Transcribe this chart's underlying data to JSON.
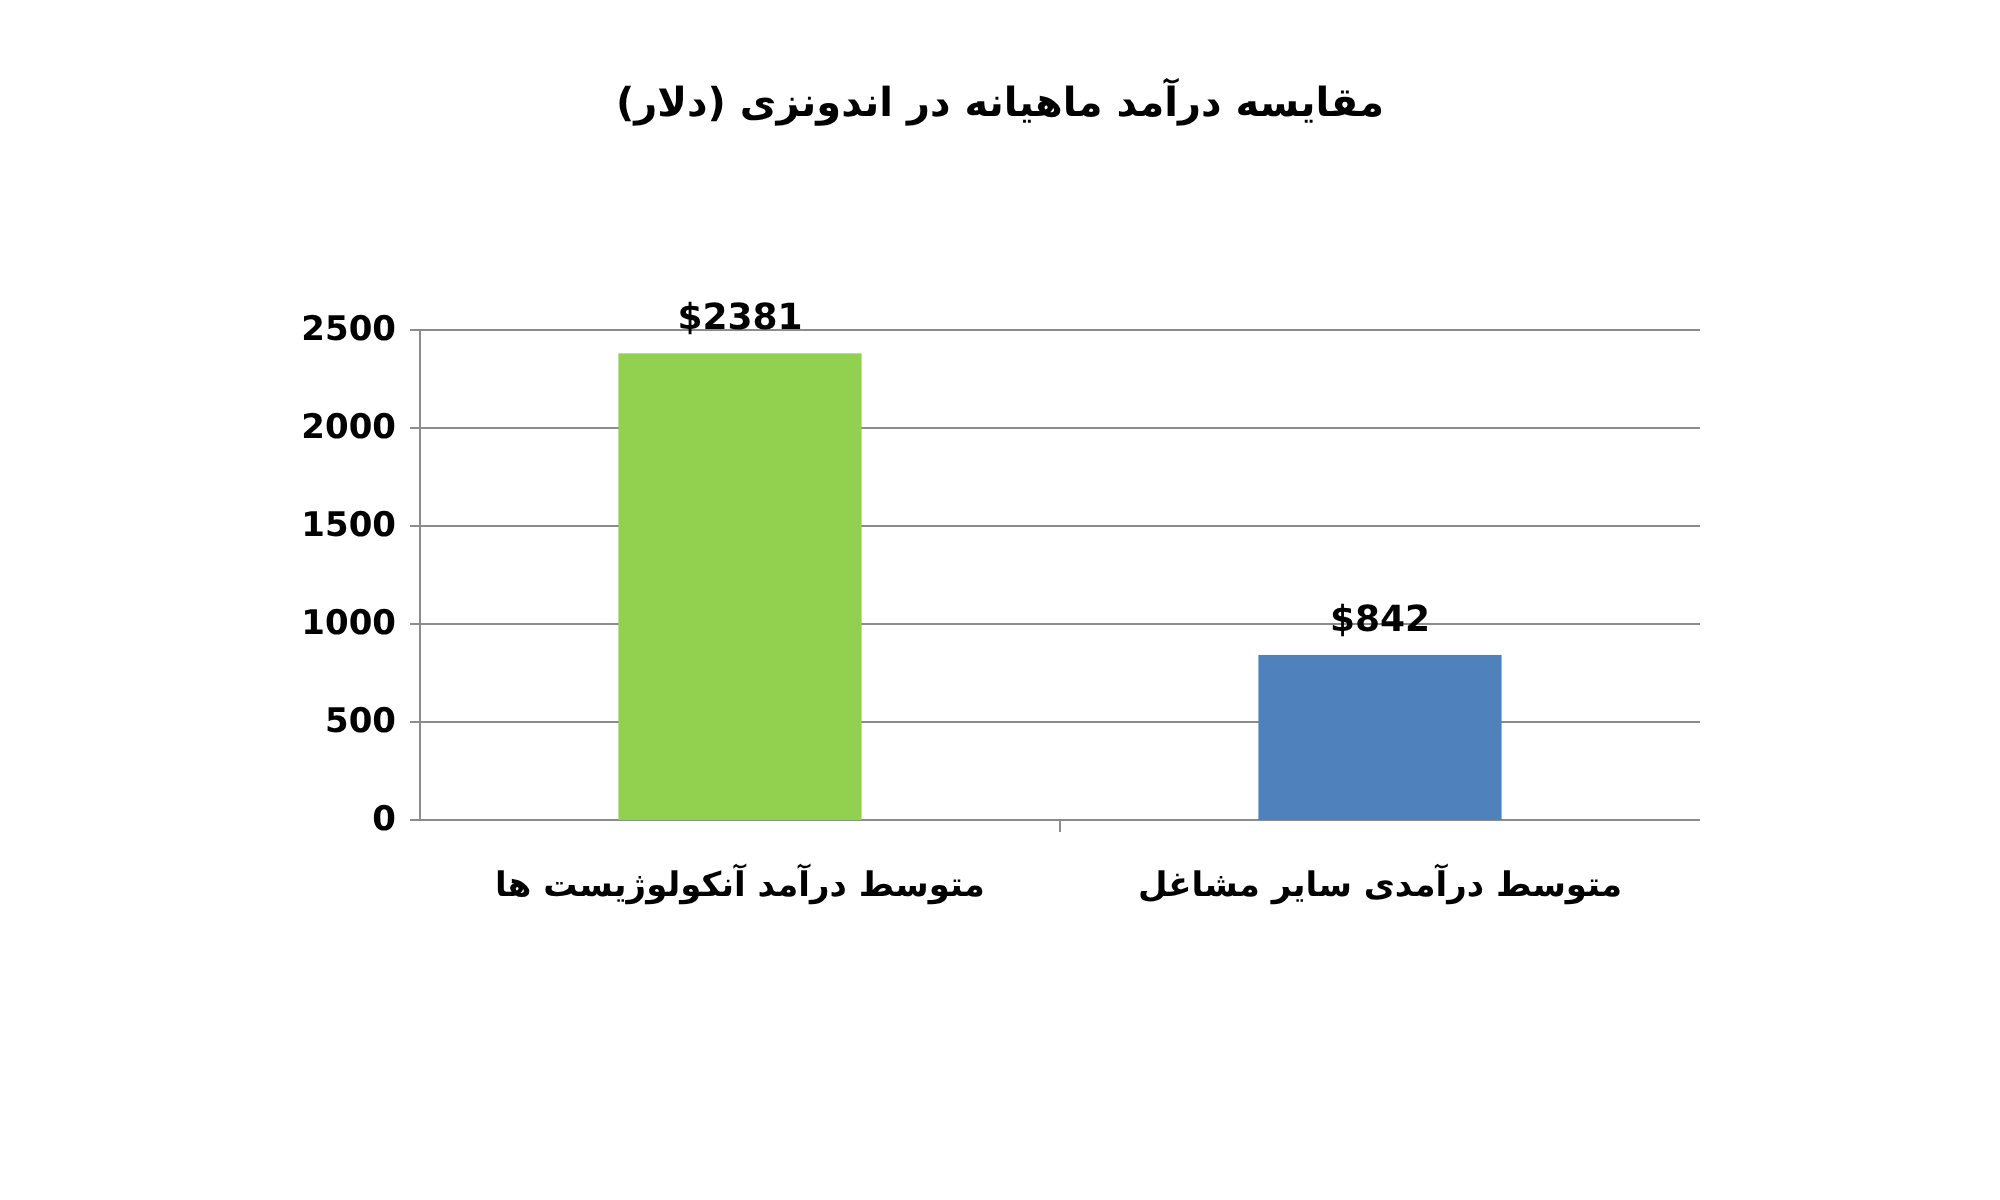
{
  "chart_data": {
    "type": "bar",
    "title": "مقایسه درآمد ماهیانه در اندونزی (دلار)",
    "categories": [
      "متوسط درآمد آنکولوژیست ها",
      "متوسط درآمدی سایر مشاغل"
    ],
    "values": [
      2381,
      842
    ],
    "colors": [
      "#92d050",
      "#4f81bd"
    ],
    "value_labels": [
      "$2381",
      "$842"
    ],
    "ylim": [
      0,
      2500
    ],
    "yticks": [
      0,
      500,
      1000,
      1500,
      2000,
      2500
    ],
    "grid": "y"
  }
}
